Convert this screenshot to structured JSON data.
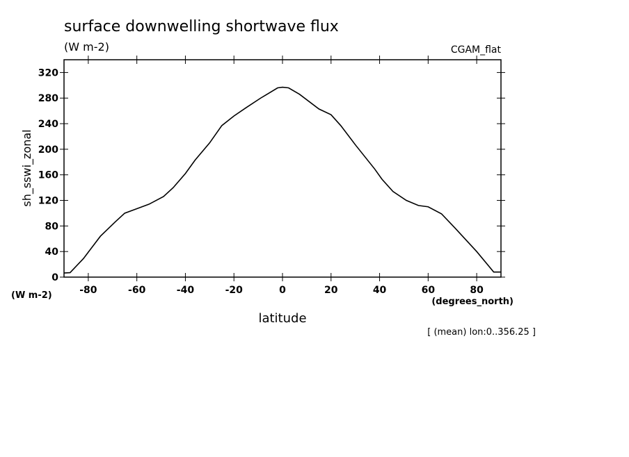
{
  "chart_data": {
    "type": "line",
    "title": "surface downwelling shortwave flux",
    "subtitle": "(W m-2)",
    "dataset": "CGAM_flat",
    "y_label": "sh_sswi_zonal",
    "y_units": "(W m-2)",
    "x_label": "latitude",
    "x_units": "(degrees_north)",
    "footnote": "[ (mean) lon:0..356.25 ]",
    "xlim": [
      -90,
      90
    ],
    "ylim": [
      0,
      340
    ],
    "xticks": [
      -80,
      -60,
      -40,
      -20,
      0,
      20,
      40,
      60,
      80
    ],
    "yticks": [
      0,
      40,
      80,
      120,
      160,
      200,
      240,
      280,
      320
    ],
    "series": [
      {
        "color": "#000000",
        "x": [
          -90,
          -87.5,
          -82,
          -75,
          -69,
          -65,
          -60,
          -55,
          -49,
          -45,
          -40,
          -36,
          -30,
          -25,
          -20,
          -15,
          -9,
          -2,
          0,
          2.5,
          7,
          15,
          20,
          24,
          30,
          38,
          41,
          45.5,
          51,
          56,
          60,
          65.5,
          71,
          80,
          87,
          90
        ],
        "values": [
          6.5,
          7,
          29,
          64,
          86,
          100,
          107,
          114,
          126,
          140,
          162,
          183,
          210,
          237,
          252,
          265,
          280,
          296,
          297,
          296,
          286,
          263,
          254,
          237,
          207,
          169,
          153,
          134,
          120,
          112,
          110,
          99,
          77,
          40,
          8,
          8
        ]
      }
    ]
  }
}
